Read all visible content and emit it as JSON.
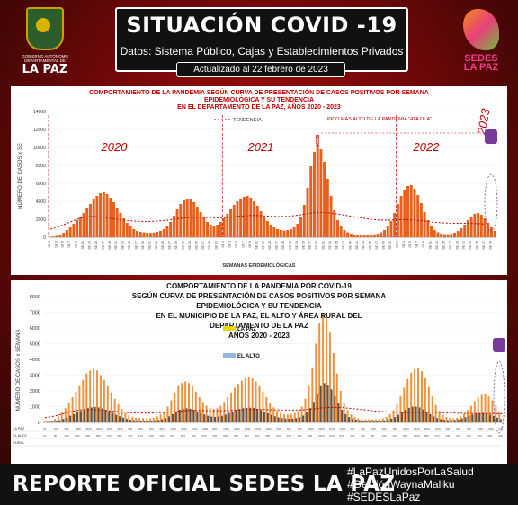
{
  "header": {
    "title": "SITUACIÓN COVID -19",
    "source": "Datos: Sistema Público, Cajas y Establecimientos Privados",
    "updated": "Actualizado al  22 febrero de 2023"
  },
  "logo_left": {
    "text_small": "GOBIERNO AUTÓNOMO DEPARTAMENTAL DE",
    "text_big": "LA PAZ"
  },
  "logo_right": {
    "text": "SEDES LA PAZ"
  },
  "footer": {
    "report": "REPORTE OFICIAL SEDES LA PAZ",
    "hashtags": [
      "#LaPazUnidosPorLaSalud",
      "#GestiónWaynaMallku",
      "#SEDESLaPaz"
    ]
  },
  "chart_data": [
    {
      "type": "bar",
      "title": "COMPORTAMIENTO DE LA PANDEMIA SEGÚN CURVA DE PRESENTACIÓN DE CASOS POSITIVOS POR SEMANA EPIDEMIOLÓGICA Y SU TENDENCIA EN EL DEPARTAMENTO DE LA PAZ, AÑOS 2020 - 2023",
      "title_lines": [
        "COMPORTAMIENTO DE LA PANDEMIA SEGÚN CURVA DE PRESENTACIÓN DE CASOS POSITIVOS POR SEMANA",
        "EPIDEMIOLÓGICA Y SU TENDENCIA",
        "EN EL DEPARTAMENTO DE LA PAZ, AÑOS 2020 - 2023"
      ],
      "xlabel": "SEMANAS EPIDEMIOLÓGICAS",
      "ylabel": "NÚMERO DE CASOS x SE",
      "ylim": [
        0,
        14000
      ],
      "yticks": [
        0,
        2000,
        4000,
        6000,
        8000,
        10000,
        12000,
        14000
      ],
      "legend": [
        "TENDENCIA"
      ],
      "year_labels": [
        "2020",
        "2021",
        "2022",
        "2023"
      ],
      "annotation": "PICO MAS ALTO DE LA PANDEMIA \"4TA OLA\"",
      "peak_label": "10338",
      "values": [
        40,
        80,
        150,
        300,
        500,
        800,
        1100,
        1500,
        1900,
        2300,
        2700,
        3200,
        3700,
        4200,
        4600,
        4900,
        5000,
        4800,
        4400,
        3900,
        3300,
        2700,
        2100,
        1600,
        1200,
        900,
        700,
        600,
        550,
        500,
        480,
        520,
        600,
        700,
        900,
        1200,
        1700,
        2400,
        3100,
        3700,
        4100,
        4300,
        4200,
        3900,
        3400,
        2800,
        2200,
        1700,
        1400,
        1300,
        1400,
        1700,
        2100,
        2600,
        3100,
        3600,
        4000,
        4300,
        4500,
        4600,
        4400,
        4000,
        3500,
        2900,
        2300,
        1800,
        1400,
        1100,
        900,
        800,
        750,
        800,
        900,
        1100,
        1500,
        2300,
        3600,
        5500,
        7900,
        9500,
        10338,
        9800,
        8400,
        6500,
        4600,
        3000,
        1900,
        1200,
        800,
        550,
        400,
        320,
        280,
        260,
        250,
        260,
        280,
        320,
        400,
        550,
        800,
        1200,
        1800,
        2700,
        3700,
        4600,
        5300,
        5700,
        5800,
        5400,
        4700,
        3800,
        2800,
        1900,
        1200,
        800,
        550,
        420,
        350,
        330,
        380,
        500,
        700,
        1000,
        1400,
        1900,
        2300,
        2600,
        2700,
        2500,
        2100,
        1600,
        1100,
        700
      ],
      "trend": [
        900,
        1000,
        1100,
        1250,
        1400,
        1550,
        1700,
        1850,
        2000,
        2100,
        2200,
        2250,
        2300,
        2300,
        2280,
        2250,
        2200,
        2150,
        2100,
        2050,
        2000,
        1950,
        1900,
        1860,
        1830,
        1800,
        1780,
        1760,
        1750,
        1750,
        1760,
        1780,
        1800,
        1830,
        1860,
        1900,
        1950,
        2000,
        2050,
        2100,
        2150,
        2180,
        2200,
        2210,
        2220,
        2220,
        2210,
        2200,
        2190,
        2180,
        2170,
        2170,
        2180,
        2200,
        2230,
        2260,
        2300,
        2340,
        2380,
        2400,
        2420,
        2420,
        2410,
        2400,
        2380,
        2360,
        2340,
        2320,
        2300,
        2300,
        2310,
        2330,
        2360,
        2400,
        2450,
        2500,
        2560,
        2620,
        2680,
        2720,
        2750,
        2760,
        2750,
        2720,
        2680,
        2630,
        2580,
        2520,
        2460,
        2400,
        2340,
        2280,
        2220,
        2160,
        2100,
        2050,
        2000,
        1960,
        1930,
        1910,
        1900,
        1900,
        1910,
        1930,
        1950,
        1960,
        1960,
        1950,
        1930,
        1900,
        1870,
        1830,
        1790,
        1750,
        1710,
        1670,
        1640,
        1610,
        1590,
        1570,
        1560,
        1550,
        1550,
        1550,
        1550,
        1550,
        1540,
        1530,
        1510,
        1490,
        1470
      ]
    },
    {
      "type": "bar",
      "title": "COMPORTAMIENTO DE LA PANDEMIA POR COVID-19 SEGÚN CURVA DE PRESENTACIÓN DE CASOS POSITIVOS POR SEMANA EPIDEMIOLÓGICA Y SU TENDENCIA EN EL MUNICIPIO DE LA PAZ, EL ALTO Y ÁREA RURAL DEL DEPARTAMENTO DE LA PAZ AÑOS 2020 - 2023",
      "title_lines": [
        "COMPORTAMIENTO DE LA PANDEMIA POR COVID-19",
        "SEGÚN CURVA DE PRESENTACIÓN DE CASOS POSITIVOS POR SEMANA",
        "EPIDEMIOLÓGICA Y SU TENDENCIA",
        "EN EL  MUNICIPIO DE LA PAZ, EL ALTO Y ÁREA RURAL DEL",
        "DEPARTAMENTO DE LA PAZ",
        "AÑOS 2020 - 2023"
      ],
      "ylabel": "NÚMERO DE CASOS x SEMANA",
      "ylim": [
        0,
        8000
      ],
      "yticks": [
        0,
        1000,
        2000,
        3000,
        4000,
        5000,
        6000,
        7000,
        8000
      ],
      "legend": [
        "LA PAZ",
        "EL ALTO"
      ],
      "table_row_labels": [
        "LA PAZ",
        "EL ALTO",
        "RURAL"
      ],
      "series": [
        {
          "name": "LA PAZ",
          "values": [
            30,
            60,
            110,
            220,
            380,
            620,
            900,
            1250,
            1600,
            1950,
            2300,
            2700,
            3100,
            3300,
            3400,
            3300,
            3000,
            2700,
            2300,
            1900,
            1500,
            1150,
            850,
            600,
            450,
            350,
            300,
            280,
            260,
            250,
            260,
            300,
            380,
            500,
            700,
            1000,
            1400,
            1900,
            2300,
            2500,
            2600,
            2500,
            2300,
            1950,
            1600,
            1300,
            1050,
            900,
            850,
            900,
            1050,
            1300,
            1600,
            1900,
            2200,
            2450,
            2650,
            2800,
            2850,
            2800,
            2600,
            2300,
            1950,
            1600,
            1250,
            950,
            750,
            600,
            520,
            500,
            530,
            600,
            750,
            1000,
            1500,
            2300,
            3500,
            5000,
            6300,
            6900,
            6600,
            5700,
            4400,
            3100,
            2000,
            1250,
            780,
            500,
            350,
            260,
            210,
            190,
            180,
            180,
            190,
            210,
            260,
            350,
            520,
            780,
            1150,
            1650,
            2200,
            2750,
            3150,
            3400,
            3450,
            3250,
            2800,
            2250,
            1650,
            1100,
            720,
            480,
            340,
            270,
            250,
            290,
            390,
            550,
            780,
            1050,
            1350,
            1600,
            1750,
            1800,
            1650,
            1400,
            1050,
            700
          ]
        },
        {
          "name": "EL ALTO",
          "values": [
            10,
            20,
            40,
            80,
            140,
            220,
            300,
            420,
            520,
            620,
            720,
            820,
            900,
            950,
            980,
            950,
            880,
            800,
            700,
            600,
            480,
            380,
            290,
            220,
            170,
            140,
            120,
            110,
            105,
            100,
            105,
            120,
            150,
            200,
            270,
            380,
            520,
            680,
            800,
            870,
            900,
            870,
            800,
            700,
            600,
            500,
            420,
            370,
            350,
            370,
            420,
            500,
            600,
            700,
            780,
            850,
            900,
            920,
            930,
            910,
            860,
            780,
            680,
            580,
            480,
            390,
            320,
            270,
            240,
            230,
            240,
            270,
            330,
            430,
            620,
            900,
            1300,
            1850,
            2300,
            2500,
            2400,
            2100,
            1650,
            1200,
            800,
            520,
            340,
            230,
            170,
            130,
            110,
            100,
            95,
            95,
            100,
            110,
            130,
            170,
            240,
            340,
            480,
            640,
            800,
            920,
            990,
            1000,
            950,
            830,
            680,
            520,
            380,
            270,
            200,
            160,
            140,
            135,
            150,
            190,
            250,
            330,
            420,
            500,
            560,
            590,
            600,
            560,
            490,
            400,
            300,
            200
          ]
        }
      ],
      "trend": [
        300,
        330,
        370,
        420,
        480,
        540,
        600,
        660,
        710,
        750,
        780,
        800,
        810,
        810,
        800,
        790,
        770,
        750,
        730,
        710,
        690,
        670,
        650,
        635,
        620,
        610,
        600,
        595,
        590,
        590,
        595,
        600,
        610,
        620,
        635,
        650,
        670,
        690,
        710,
        730,
        745,
        755,
        760,
        760,
        755,
        750,
        745,
        740,
        738,
        738,
        740,
        745,
        752,
        760,
        770,
        780,
        790,
        800,
        808,
        812,
        815,
        815,
        812,
        808,
        802,
        796,
        790,
        785,
        780,
        778,
        778,
        780,
        785,
        795,
        810,
        830,
        855,
        880,
        905,
        925,
        940,
        948,
        950,
        945,
        935,
        920,
        900,
        878,
        855,
        830,
        805,
        780,
        756,
        733,
        712,
        693,
        676,
        662,
        650,
        642,
        636,
        632,
        630,
        630,
        632,
        634,
        636,
        637,
        637,
        635,
        632,
        628,
        622,
        615,
        608,
        600,
        592,
        585,
        578,
        572,
        567,
        563,
        560,
        558,
        556,
        555,
        554,
        553,
        552,
        551,
        550
      ]
    }
  ]
}
